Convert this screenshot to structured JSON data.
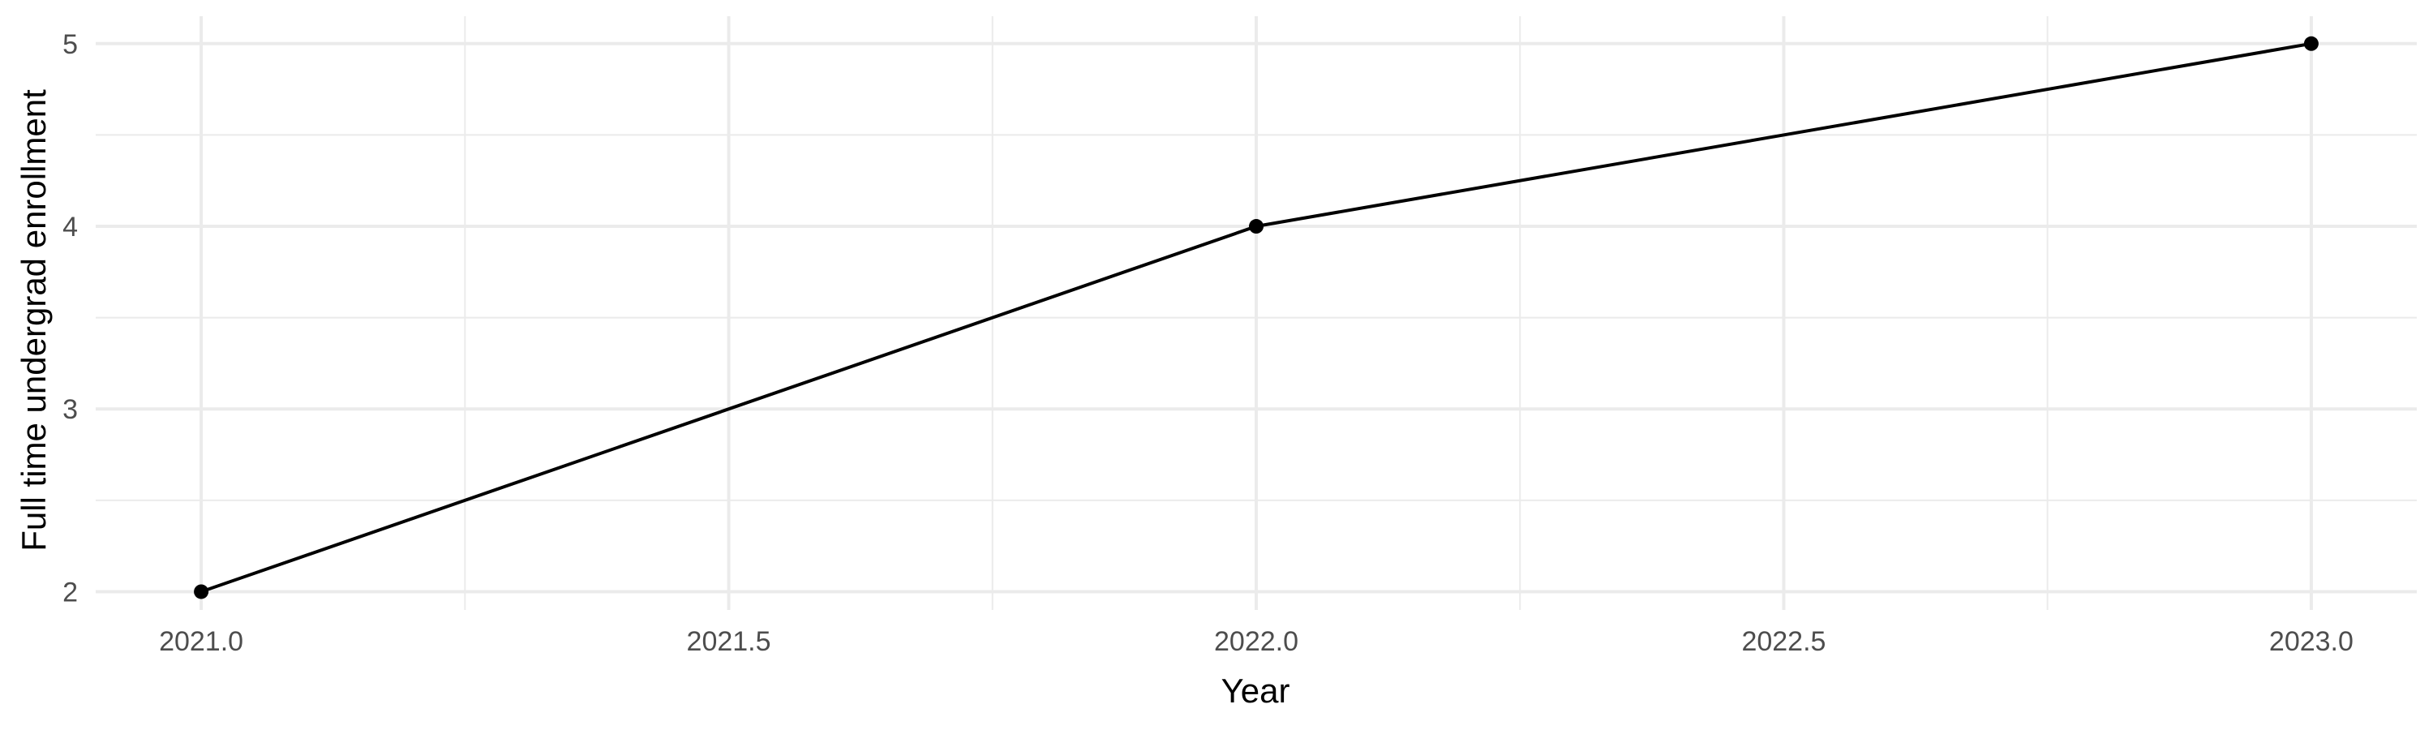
{
  "chart_data": {
    "type": "line",
    "title": "",
    "xlabel": "Year",
    "ylabel": "Full time undergrad enrollment",
    "x": [
      2021,
      2022,
      2023
    ],
    "series": [
      {
        "values": [
          2,
          4,
          5
        ]
      }
    ],
    "xlim": [
      2020.9,
      2023.1
    ],
    "ylim": [
      1.9,
      5.15
    ],
    "x_ticks": [
      2021.0,
      2021.5,
      2022.0,
      2022.5,
      2023.0
    ],
    "x_tick_labels": [
      "2021.0",
      "2021.5",
      "2022.0",
      "2022.5",
      "2023.0"
    ],
    "y_ticks": [
      2,
      3,
      4,
      5
    ],
    "y_tick_labels": [
      "2",
      "3",
      "4",
      "5"
    ],
    "x_minor_ticks": [
      2021.25,
      2021.75,
      2022.25,
      2022.75
    ],
    "y_minor_ticks": [
      2.5,
      3.5,
      4.5
    ],
    "grid": true,
    "legend": "none",
    "colors": {
      "line": "#000000",
      "grid": "#ebebeb",
      "tick_text": "#4d4d4d"
    }
  }
}
